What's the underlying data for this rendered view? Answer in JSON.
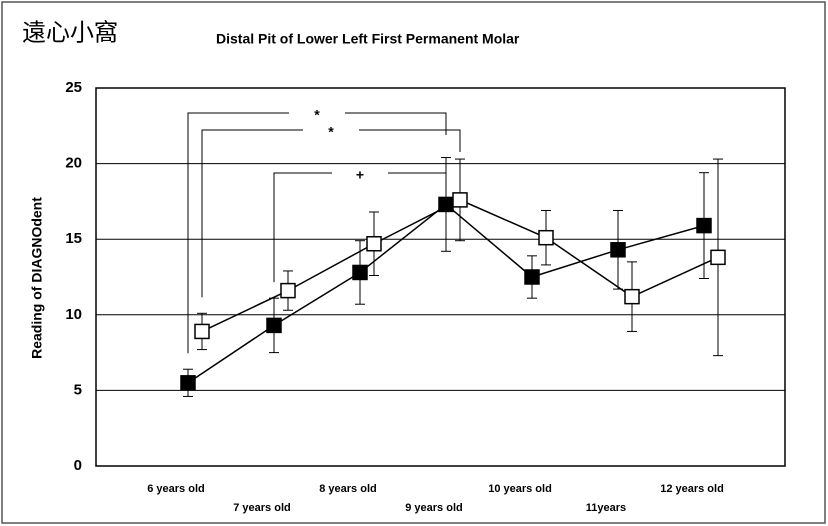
{
  "chart_data": {
    "type": "line",
    "label": "遠心小窩",
    "title": "Distal Pit of Lower Left First Permanent Molar",
    "ylabel": "Reading of DIAGNOdent",
    "categories": [
      "6 years old",
      "7 years old",
      "8 years old",
      "9 years old",
      "10 years old",
      "11years",
      "12 years old"
    ],
    "series": [
      {
        "color": "#000000",
        "marker": "filled-square",
        "values": [
          5.5,
          9.3,
          12.8,
          17.3,
          12.5,
          14.3,
          15.9
        ],
        "errors": [
          0.9,
          1.8,
          2.1,
          3.1,
          1.4,
          2.6,
          3.5
        ]
      },
      {
        "color": "#000000",
        "marker": "open-square",
        "values": [
          8.9,
          11.6,
          14.7,
          17.6,
          15.1,
          11.2,
          13.8
        ],
        "errors": [
          1.2,
          1.3,
          2.1,
          2.7,
          1.8,
          2.3,
          6.5
        ]
      }
    ],
    "annotations": [
      {
        "label": "*",
        "series": 0,
        "from": 0,
        "to": 3
      },
      {
        "label": "*",
        "series": 1,
        "from": 0,
        "to": 3
      },
      {
        "label": "+",
        "series": 0,
        "from": 1,
        "to": 3
      }
    ],
    "ylim": [
      0,
      25
    ],
    "yticks": [
      0,
      5,
      10,
      15,
      20,
      25
    ],
    "grid": true
  }
}
